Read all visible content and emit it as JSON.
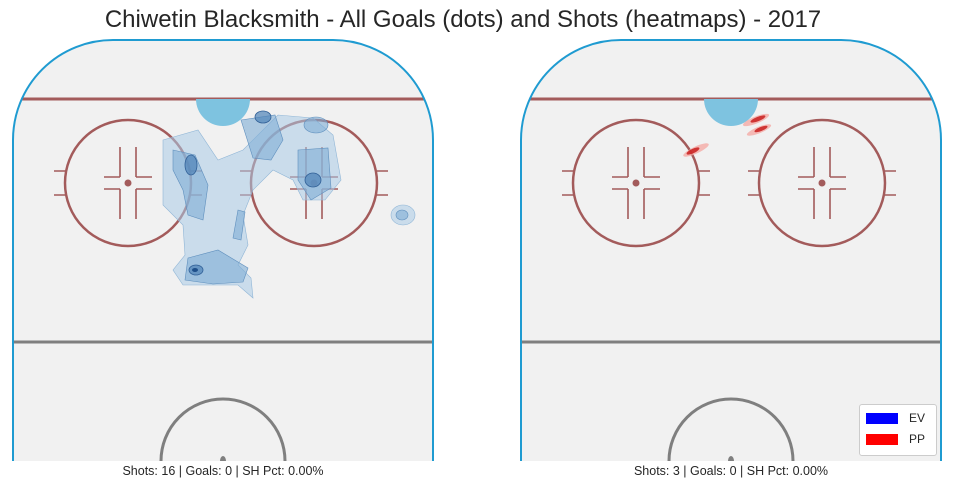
{
  "chart_data": [
    {
      "type": "heatmap",
      "title": "Chiwetin Blacksmith - All Goals (dots) and Shots (heatmaps) - 2017",
      "caption": "Shots: 16 | Goals: 0 | SH Pct: 0.00%",
      "legend": "none",
      "shots": 16,
      "goals": 0,
      "sh_pct": "0.00%",
      "ev_color": "#4a8fc4",
      "pp_color": "#d7191c"
    },
    {
      "type": "heatmap",
      "caption": "Shots: 3 | Goals: 0 | SH Pct: 0.00%",
      "legend": "bottom-right",
      "shots": 3,
      "goals": 0,
      "sh_pct": "0.00%",
      "legend_entries": [
        {
          "label": "EV",
          "color": "#0000ff"
        },
        {
          "label": "PP",
          "color": "#ff0000"
        }
      ]
    }
  ],
  "colors": {
    "ice": "#f1f1f1",
    "boards": "#1f9bd1",
    "goal_line": "#a35b5b",
    "faceoff": "#a35b5b",
    "blue_line": "#7f7f7f",
    "crease": "#7ec3e0"
  }
}
